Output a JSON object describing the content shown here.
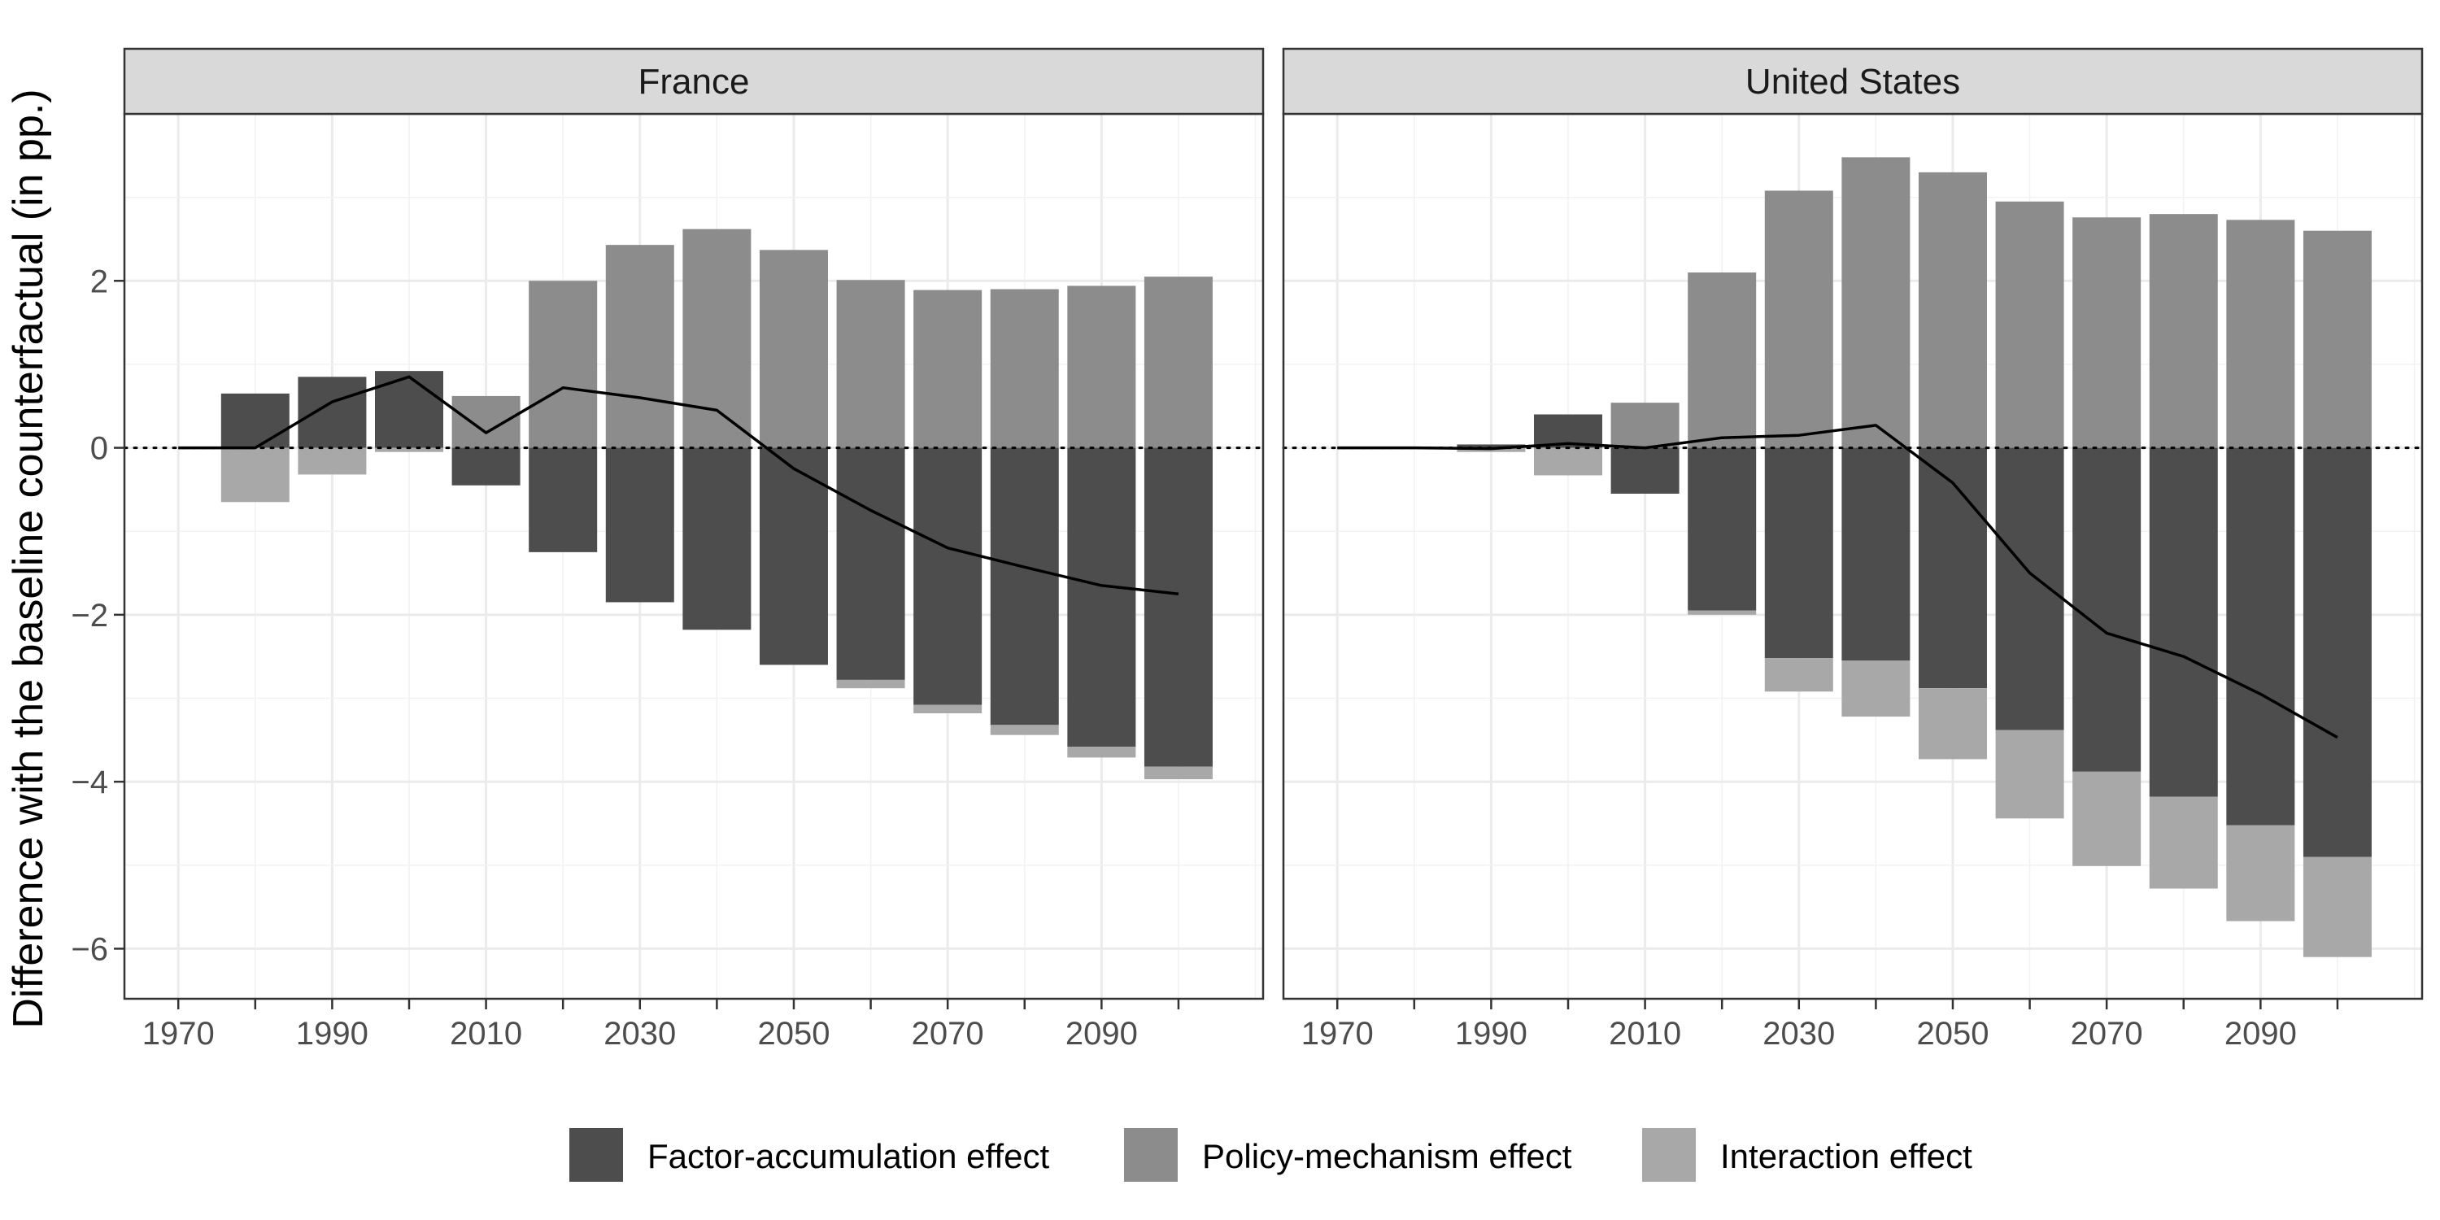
{
  "chart_data": {
    "type": "bar",
    "ylabel": "Difference with the baseline counterfactual (in pp.)",
    "x_ticks": [
      1970,
      1990,
      2010,
      2030,
      2050,
      2070,
      2090
    ],
    "y_ticks": [
      -6,
      -4,
      -2,
      0,
      2
    ],
    "xlim": [
      1963,
      2111
    ],
    "ylim": [
      -6.6,
      4.0
    ],
    "stacking": "positive and negative values stacked separately; the total is drawn as a line",
    "series_names": [
      "Factor-accumulation effect",
      "Policy-mechanism effect",
      "Interaction effect"
    ],
    "colors": {
      "factor": "#4d4d4d",
      "policy": "#8c8c8c",
      "interaction": "#a8a8a8",
      "total_line": "#000000",
      "strip_fill": "#d9d9d9"
    },
    "legend": {
      "position": "bottom",
      "items": [
        "Factor-accumulation effect",
        "Policy-mechanism effect",
        "Interaction effect"
      ]
    },
    "panels": [
      {
        "label": "France",
        "x": [
          1980,
          1990,
          2000,
          2010,
          2020,
          2030,
          2040,
          2050,
          2060,
          2070,
          2080,
          2090,
          2100
        ],
        "factor": [
          0.65,
          0.85,
          0.92,
          -0.45,
          -1.25,
          -1.85,
          -2.18,
          -2.6,
          -2.78,
          -3.08,
          -3.32,
          -3.58,
          -3.82
        ],
        "policy": [
          0,
          0,
          0,
          0.62,
          2.0,
          2.43,
          2.62,
          2.37,
          2.01,
          1.89,
          1.9,
          1.94,
          2.05
        ],
        "interaction": [
          -0.65,
          -0.32,
          -0.05,
          0,
          0,
          0,
          0,
          0,
          -0.1,
          -0.1,
          -0.12,
          -0.13,
          -0.15
        ],
        "total_line": {
          "x": [
            1970,
            1980,
            1990,
            2000,
            2010,
            2020,
            2030,
            2040,
            2050,
            2060,
            2070,
            2080,
            2090,
            2100
          ],
          "y": [
            0,
            0,
            0.55,
            0.85,
            0.18,
            0.72,
            0.6,
            0.45,
            -0.25,
            -0.75,
            -1.2,
            -1.43,
            -1.65,
            -1.75
          ]
        }
      },
      {
        "label": "United States",
        "x": [
          1980,
          1990,
          2000,
          2010,
          2020,
          2030,
          2040,
          2050,
          2060,
          2070,
          2080,
          2090,
          2100
        ],
        "factor": [
          0.01,
          0.04,
          0.4,
          -0.55,
          -1.95,
          -2.52,
          -2.55,
          -2.88,
          -3.38,
          -3.88,
          -4.18,
          -4.52,
          -4.9
        ],
        "policy": [
          0,
          0,
          0,
          0.54,
          2.1,
          3.08,
          3.48,
          3.3,
          2.95,
          2.76,
          2.8,
          2.73,
          2.6
        ],
        "interaction": [
          -0.01,
          -0.05,
          -0.33,
          0,
          -0.05,
          -0.4,
          -0.67,
          -0.85,
          -1.06,
          -1.13,
          -1.1,
          -1.15,
          -1.2
        ],
        "total_line": {
          "x": [
            1970,
            1980,
            1990,
            2000,
            2010,
            2020,
            2030,
            2040,
            2050,
            2060,
            2070,
            2080,
            2090,
            2100
          ],
          "y": [
            0,
            0,
            -0.01,
            0.05,
            0,
            0.12,
            0.15,
            0.27,
            -0.42,
            -1.5,
            -2.22,
            -2.5,
            -2.95,
            -3.47
          ]
        }
      }
    ]
  }
}
